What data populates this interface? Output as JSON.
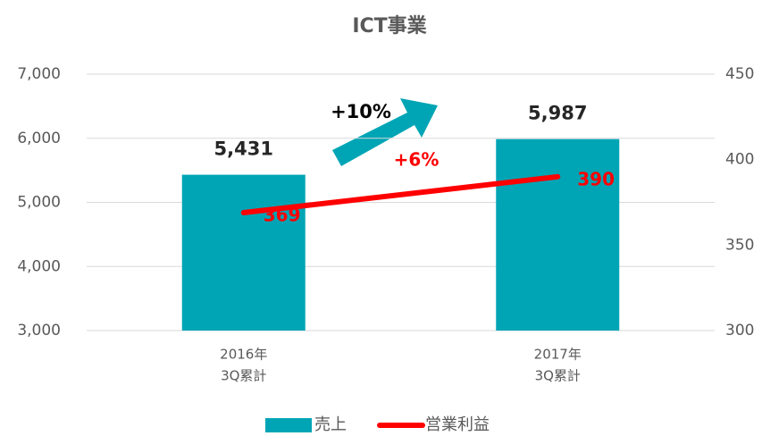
{
  "chart_data": {
    "type": "bar",
    "title": "ICT事業",
    "categories": [
      [
        "2016年",
        "3Q累計"
      ],
      [
        "2017年",
        "3Q累計"
      ]
    ],
    "series": [
      {
        "name": "売上",
        "type": "bar",
        "color": "#00a5b5",
        "values": [
          5431,
          5987
        ],
        "value_labels": [
          "5,431",
          "5,987"
        ]
      },
      {
        "name": "営業利益",
        "type": "line",
        "axis": "y2",
        "color": "#ff0000",
        "values": [
          369,
          390
        ]
      }
    ],
    "ylim": [
      3000,
      7000
    ],
    "yticks": [
      {
        "value": 3000,
        "label": "3,000"
      },
      {
        "value": 4000,
        "label": "4,000"
      },
      {
        "value": 5000,
        "label": "5,000"
      },
      {
        "value": 6000,
        "label": "6,000"
      },
      {
        "value": 7000,
        "label": "7,000"
      }
    ],
    "y2lim": [
      300,
      450
    ],
    "y2ticks": [
      300,
      350,
      400,
      450
    ],
    "grid": true,
    "legend": "bottom",
    "annotations": [
      "+10%",
      "+6%"
    ]
  }
}
